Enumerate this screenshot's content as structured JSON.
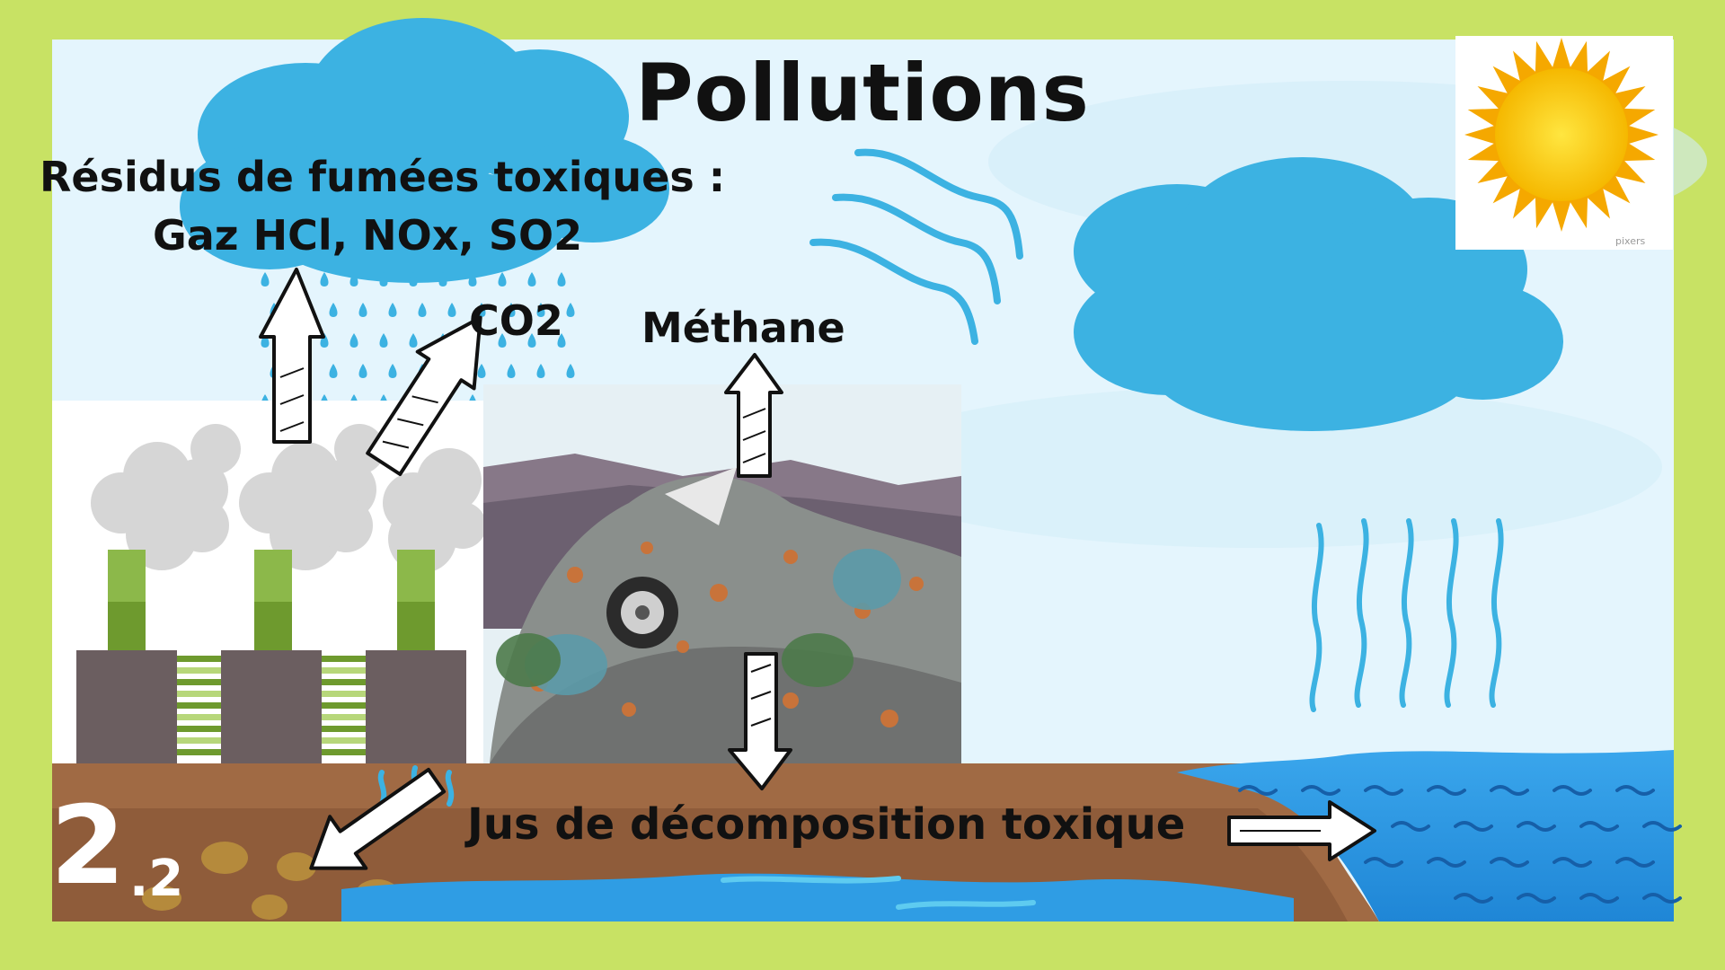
{
  "title": "Pollutions",
  "labels": {
    "fumes_line1": "Résidus de fumées toxiques :",
    "fumes_line2": "Gaz HCl, NOx, SO2",
    "co2": "CO2",
    "methane": "Méthane",
    "leachate": "Jus de décomposition toxique"
  },
  "badge": {
    "main": "2",
    "sub": ".2"
  },
  "watermark": "pixers",
  "icons": [
    "cloud-icon",
    "sun-icon",
    "factory-icon",
    "landfill-icon",
    "wind-icon",
    "rain-icon",
    "arrow-up-icon",
    "arrow-down-icon",
    "arrow-right-icon"
  ],
  "colors": {
    "frame": "#c8e264",
    "sky": "#e2f4fc",
    "cloud": "#3cb2e2",
    "water": "#2f9de4",
    "soil": "#a06a44",
    "smoke": "#d8d8d8",
    "chimney": "#6e9a2e",
    "building": "#6b5e60",
    "sun": "#ffd21a"
  }
}
